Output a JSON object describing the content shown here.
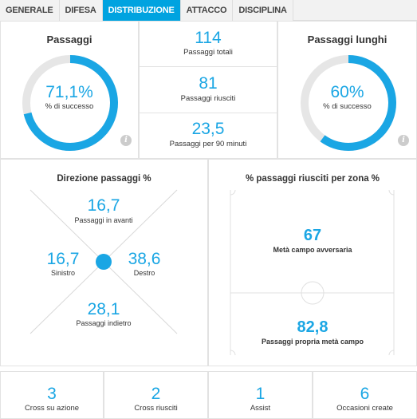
{
  "tabs": [
    {
      "label": "GENERALE",
      "active": false
    },
    {
      "label": "DIFESA",
      "active": false
    },
    {
      "label": "DISTRIBUZIONE",
      "active": true
    },
    {
      "label": "ATTACCO",
      "active": false
    },
    {
      "label": "DISCIPLINA",
      "active": false
    }
  ],
  "passaggi": {
    "title": "Passaggi",
    "value": "71,1%",
    "label": "% di successo",
    "fraction": 0.711,
    "info_icon": "i"
  },
  "stats": [
    {
      "value": "114",
      "label": "Passaggi totali"
    },
    {
      "value": "81",
      "label": "Passaggi riusciti"
    },
    {
      "value": "23,5",
      "label": "Passaggi per 90 minuti"
    }
  ],
  "passaggi_lunghi": {
    "title": "Passaggi lunghi",
    "value": "60%",
    "label": "% di successo",
    "fraction": 0.6,
    "info_icon": "i"
  },
  "direzione": {
    "title": "Direzione passaggi %",
    "avanti": {
      "value": "16,7",
      "label": "Passaggi in avanti"
    },
    "sinistro": {
      "value": "16,7",
      "label": "Sinistro"
    },
    "destro": {
      "value": "38,6",
      "label": "Destro"
    },
    "indietro": {
      "value": "28,1",
      "label": "Passaggi indietro"
    }
  },
  "zona": {
    "title": "% passaggi riusciti per zona %",
    "avversaria": {
      "value": "67",
      "label": "Metà campo avversaria"
    },
    "propria": {
      "value": "82,8",
      "label": "Passaggi propria metà campo"
    }
  },
  "bottom": [
    {
      "value": "3",
      "label": "Cross su azione"
    },
    {
      "value": "2",
      "label": "Cross riusciti"
    },
    {
      "value": "1",
      "label": "Assist"
    },
    {
      "value": "6",
      "label": "Occasioni create"
    }
  ],
  "colors": {
    "accent": "#1aa6e4",
    "track": "#e6e6e6",
    "tab_active": "#00a3e0"
  }
}
